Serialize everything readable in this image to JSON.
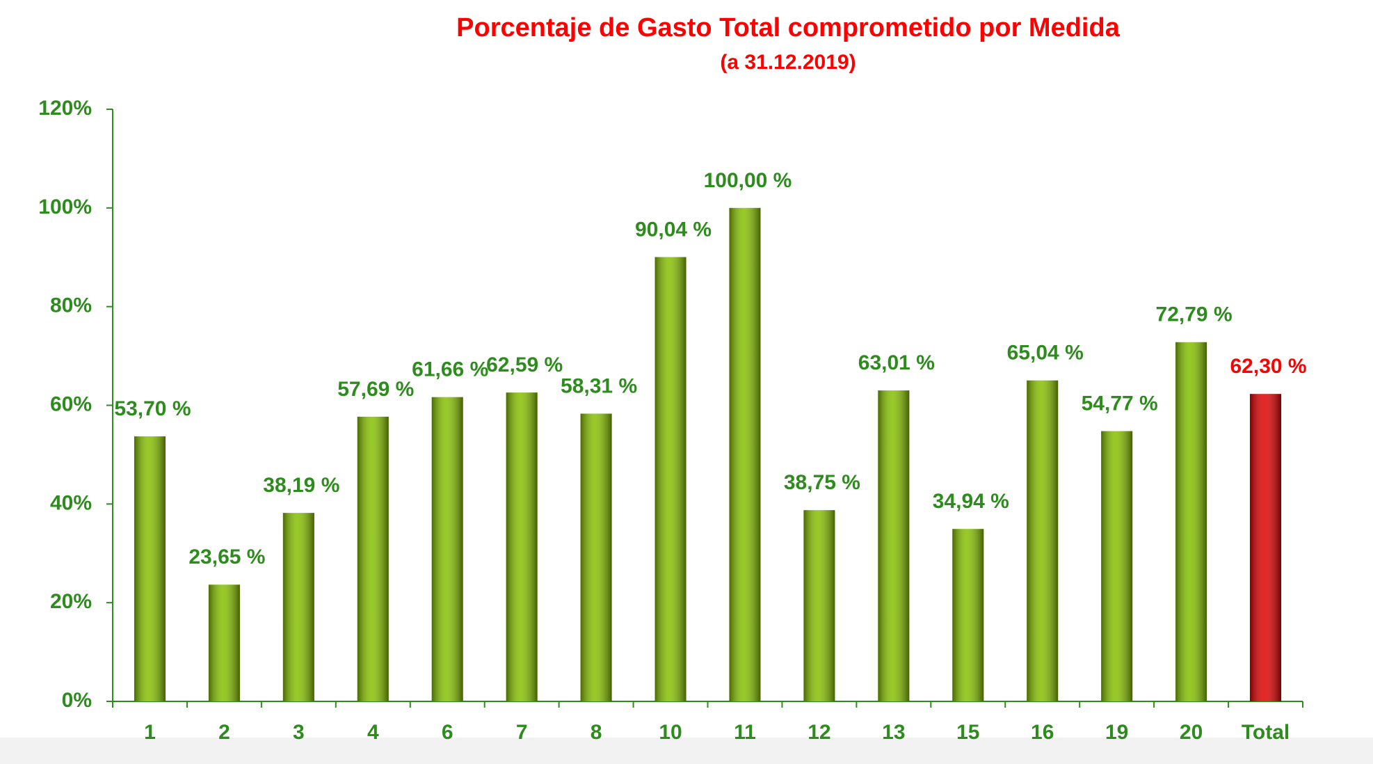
{
  "chart_data": {
    "type": "bar",
    "title": "Porcentaje de Gasto Total comprometido por Medida",
    "subtitle": "(a 31.12.2019)",
    "categories": [
      "1",
      "2",
      "3",
      "4",
      "6",
      "7",
      "8",
      "10",
      "11",
      "12",
      "13",
      "15",
      "16",
      "19",
      "20",
      "Total"
    ],
    "values": [
      53.7,
      23.65,
      38.19,
      57.69,
      61.66,
      62.59,
      58.31,
      90.04,
      100.0,
      38.75,
      63.01,
      34.94,
      65.04,
      54.77,
      72.79,
      62.3
    ],
    "value_labels": [
      "53,70 %",
      "23,65 %",
      "38,19 %",
      "57,69 %",
      "61,66 %",
      "62,59 %",
      "58,31 %",
      "90,04 %",
      "100,00 %",
      "38,75 %",
      "63,01 %",
      "34,94 %",
      "65,04 %",
      "54,77 %",
      "72,79 %",
      "62,30 %"
    ],
    "colors": [
      "#86c000",
      "#86c000",
      "#86c000",
      "#86c000",
      "#86c000",
      "#86c000",
      "#86c000",
      "#86c000",
      "#86c000",
      "#86c000",
      "#86c000",
      "#86c000",
      "#86c000",
      "#86c000",
      "#86c000",
      "#e00000"
    ],
    "label_colors": [
      "#2e8b1e",
      "#2e8b1e",
      "#2e8b1e",
      "#2e8b1e",
      "#2e8b1e",
      "#2e8b1e",
      "#2e8b1e",
      "#2e8b1e",
      "#2e8b1e",
      "#2e8b1e",
      "#2e8b1e",
      "#2e8b1e",
      "#2e8b1e",
      "#2e8b1e",
      "#2e8b1e",
      "#ff0000"
    ],
    "ylim": [
      0,
      120
    ],
    "yticks": [
      {
        "value": 0,
        "label": "0%"
      },
      {
        "value": 20,
        "label": "20%"
      },
      {
        "value": 40,
        "label": "40%"
      },
      {
        "value": 60,
        "label": "60%"
      },
      {
        "value": 80,
        "label": "80%"
      },
      {
        "value": 100,
        "label": "100%"
      },
      {
        "value": 120,
        "label": "120%"
      }
    ],
    "grid": false
  }
}
